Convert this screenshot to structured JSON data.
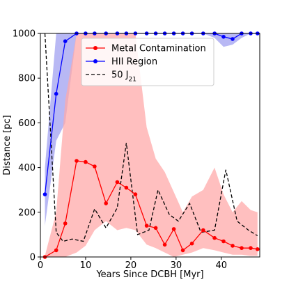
{
  "chart_data": {
    "type": "line",
    "title": "",
    "xlabel": "Years Since DCBH [Myr]",
    "ylabel": "Distance [pc]",
    "xlim": [
      0,
      48.5
    ],
    "ylim": [
      0,
      1000
    ],
    "xticks": [
      0,
      10,
      20,
      30,
      40
    ],
    "yticks": [
      0,
      200,
      400,
      600,
      800,
      1000
    ],
    "grid": false,
    "legend_position": "top-center",
    "colors": {
      "metal": "#ff0000",
      "metal_band": "#ffaaaa",
      "hii": "#0000ff",
      "hii_band": "#a0a0f0",
      "j21": "#000000"
    },
    "series": [
      {
        "name": "Metal Contamination",
        "style": "solid-red-dots",
        "x": [
          1.0,
          3.5,
          5.5,
          8.0,
          10.0,
          12.0,
          14.5,
          17.0,
          19.0,
          21.0,
          23.5,
          25.5,
          27.5,
          29.5,
          31.5,
          33.5,
          36.0,
          38.5,
          40.5,
          42.5,
          44.5,
          46.5,
          48.0
        ],
        "y": [
          0,
          30,
          150,
          430,
          425,
          405,
          240,
          335,
          310,
          280,
          140,
          130,
          55,
          125,
          30,
          60,
          120,
          85,
          70,
          50,
          40,
          40,
          35
        ],
        "band_low": [
          0,
          0,
          0,
          20,
          50,
          120,
          160,
          120,
          130,
          120,
          55,
          40,
          20,
          0,
          10,
          20,
          40,
          30,
          20,
          10,
          10,
          5,
          5
        ],
        "band_high": [
          5,
          200,
          700,
          1000,
          1000,
          1000,
          1000,
          1000,
          1000,
          1000,
          580,
          440,
          380,
          290,
          200,
          270,
          300,
          400,
          280,
          200,
          250,
          210,
          200
        ]
      },
      {
        "name": "HII Region",
        "style": "solid-blue-dots",
        "x": [
          1.0,
          3.5,
          5.5,
          8.0,
          10.0,
          12.0,
          14.5,
          17.0,
          19.0,
          21.0,
          23.5,
          25.5,
          27.5,
          29.5,
          31.5,
          33.5,
          36.0,
          38.5,
          40.5,
          42.5,
          44.5,
          46.5,
          48.0
        ],
        "y": [
          280,
          730,
          965,
          1000,
          1000,
          1000,
          1000,
          1000,
          1000,
          1000,
          1000,
          1000,
          1000,
          1000,
          1000,
          1000,
          1000,
          1000,
          985,
          975,
          1000,
          1000,
          1000
        ],
        "band_low": [
          140,
          520,
          600,
          1000,
          1000,
          1000,
          1000,
          1000,
          1000,
          1000,
          1000,
          1000,
          1000,
          1000,
          1000,
          1000,
          1000,
          980,
          940,
          950,
          980,
          1000,
          1000
        ],
        "band_high": [
          400,
          1000,
          1000,
          1000,
          1000,
          1000,
          1000,
          1000,
          1000,
          1000,
          1000,
          1000,
          1000,
          1000,
          1000,
          1000,
          1000,
          1000,
          1000,
          1000,
          1000,
          1000,
          1000
        ]
      },
      {
        "name": "50 J",
        "name_subscript": "21",
        "style": "dashed-black",
        "x": [
          1.0,
          3.5,
          5.0,
          7.0,
          9.5,
          12.0,
          14.5,
          17.0,
          19.0,
          21.5,
          24.0,
          26.0,
          28.5,
          30.5,
          33.0,
          35.5,
          38.5,
          41.0,
          43.5,
          46.0,
          48.0
        ],
        "y": [
          1000,
          110,
          70,
          80,
          70,
          215,
          130,
          220,
          510,
          100,
          120,
          300,
          190,
          160,
          240,
          110,
          120,
          390,
          160,
          120,
          95
        ]
      }
    ]
  }
}
